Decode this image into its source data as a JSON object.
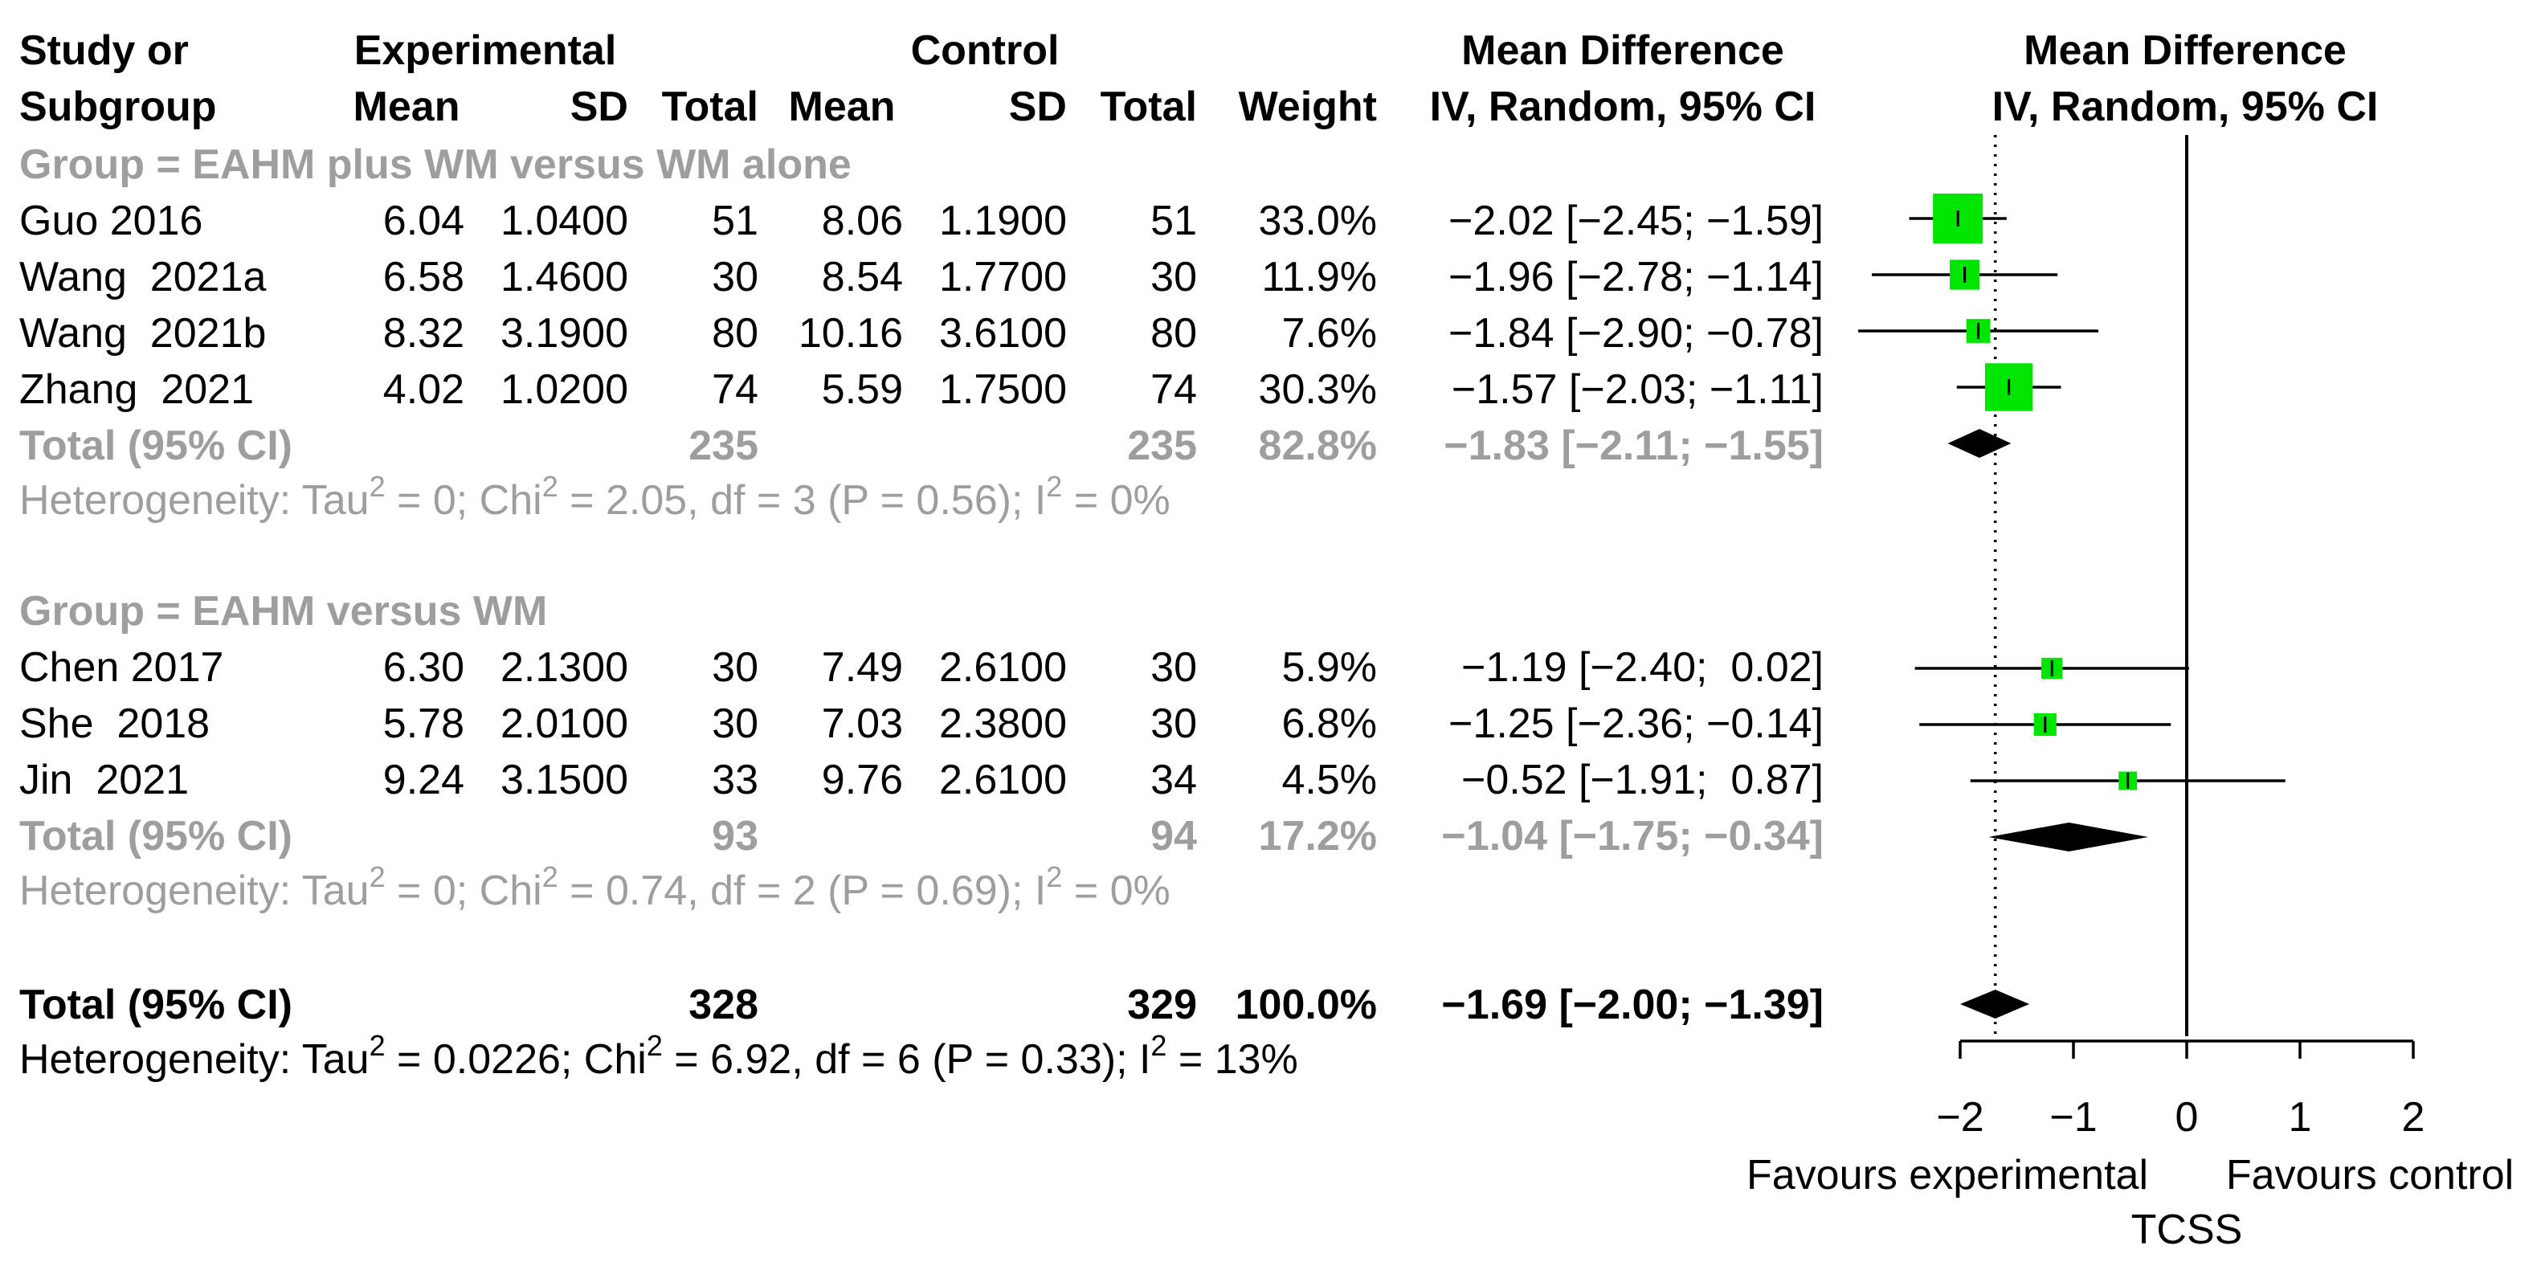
{
  "colors": {
    "text": "#000000",
    "muted": "#9e9e9e",
    "box": "#00e600",
    "diamond": "#000000"
  },
  "headers": {
    "study_line1": "Study or",
    "study_line2": "Subgroup",
    "experimental": "Experimental",
    "control": "Control",
    "mean": "Mean",
    "sd": "SD",
    "total": "Total",
    "weight": "Weight",
    "md_line1": "Mean Difference",
    "md_line2": "IV, Random, 95% CI",
    "plot_line1": "Mean Difference",
    "plot_line2": "IV, Random, 95% CI"
  },
  "chart_data": {
    "type": "forest",
    "measure": "Mean Difference",
    "method": "IV, Random, 95% CI",
    "outcome": "TCSS",
    "xlabel_left": "Favours experimental",
    "xlabel_right": "Favours control",
    "xlabel": "TCSS",
    "xlim": [
      -2,
      2
    ],
    "ticks": [
      -2,
      -1,
      0,
      1,
      2
    ],
    "tick_labels": [
      "−2",
      "−1",
      "0",
      "1",
      "2"
    ],
    "pooled_line": -1.69,
    "null_line": 0,
    "groups": [
      {
        "label": "Group = EAHM plus WM versus WM alone",
        "studies": [
          {
            "name": "Guo 2016",
            "exp_mean": "6.04",
            "exp_sd": "1.0400",
            "exp_total": "51",
            "ctrl_mean": "8.06",
            "ctrl_sd": "1.1900",
            "ctrl_total": "51",
            "weight": "33.0%",
            "md_text": "−2.02 [−2.45; −1.59]",
            "md": -2.02,
            "lo": -2.45,
            "hi": -1.59,
            "w": 33.0
          },
          {
            "name": "Wang  2021a",
            "exp_mean": "6.58",
            "exp_sd": "1.4600",
            "exp_total": "30",
            "ctrl_mean": "8.54",
            "ctrl_sd": "1.7700",
            "ctrl_total": "30",
            "weight": "11.9%",
            "md_text": "−1.96 [−2.78; −1.14]",
            "md": -1.96,
            "lo": -2.78,
            "hi": -1.14,
            "w": 11.9
          },
          {
            "name": "Wang  2021b",
            "exp_mean": "8.32",
            "exp_sd": "3.1900",
            "exp_total": "80",
            "ctrl_mean": "10.16",
            "ctrl_sd": "3.6100",
            "ctrl_total": "80",
            "weight": "7.6%",
            "md_text": "−1.84 [−2.90; −0.78]",
            "md": -1.84,
            "lo": -2.9,
            "hi": -0.78,
            "w": 7.6
          },
          {
            "name": "Zhang  2021",
            "exp_mean": "4.02",
            "exp_sd": "1.0200",
            "exp_total": "74",
            "ctrl_mean": "5.59",
            "ctrl_sd": "1.7500",
            "ctrl_total": "74",
            "weight": "30.3%",
            "md_text": "−1.57 [−2.03; −1.11]",
            "md": -1.57,
            "lo": -2.03,
            "hi": -1.11,
            "w": 30.3
          }
        ],
        "total": {
          "label": "Total (95% CI)",
          "exp_total": "235",
          "ctrl_total": "235",
          "weight": "82.8%",
          "md_text": "−1.83 [−2.11; −1.55]",
          "md": -1.83,
          "lo": -2.11,
          "hi": -1.55
        },
        "heterogeneity": {
          "prefix": "Heterogeneity: Tau",
          "tau2": " = 0; Chi",
          "chi2": " = 2.05, df = 3 (P = 0.56); I",
          "i2": " = 0%"
        }
      },
      {
        "label": "Group = EAHM versus WM",
        "studies": [
          {
            "name": "Chen 2017",
            "exp_mean": "6.30",
            "exp_sd": "2.1300",
            "exp_total": "30",
            "ctrl_mean": "7.49",
            "ctrl_sd": "2.6100",
            "ctrl_total": "30",
            "weight": "5.9%",
            "md_text": "−1.19 [−2.40;  0.02]",
            "md": -1.19,
            "lo": -2.4,
            "hi": 0.02,
            "w": 5.9
          },
          {
            "name": "She  2018",
            "exp_mean": "5.78",
            "exp_sd": "2.0100",
            "exp_total": "30",
            "ctrl_mean": "7.03",
            "ctrl_sd": "2.3800",
            "ctrl_total": "30",
            "weight": "6.8%",
            "md_text": "−1.25 [−2.36; −0.14]",
            "md": -1.25,
            "lo": -2.36,
            "hi": -0.14,
            "w": 6.8
          },
          {
            "name": "Jin  2021",
            "exp_mean": "9.24",
            "exp_sd": "3.1500",
            "exp_total": "33",
            "ctrl_mean": "9.76",
            "ctrl_sd": "2.6100",
            "ctrl_total": "34",
            "weight": "4.5%",
            "md_text": "−0.52 [−1.91;  0.87]",
            "md": -0.52,
            "lo": -1.91,
            "hi": 0.87,
            "w": 4.5
          }
        ],
        "total": {
          "label": "Total (95% CI)",
          "exp_total": "93",
          "ctrl_total": "94",
          "weight": "17.2%",
          "md_text": "−1.04 [−1.75; −0.34]",
          "md": -1.04,
          "lo": -1.75,
          "hi": -0.34
        },
        "heterogeneity": {
          "prefix": "Heterogeneity: Tau",
          "tau2": " = 0; Chi",
          "chi2": " = 0.74, df = 2 (P = 0.69); I",
          "i2": " = 0%"
        }
      }
    ],
    "overall": {
      "label": "Total (95% CI)",
      "exp_total": "328",
      "ctrl_total": "329",
      "weight": "100.0%",
      "md_text": "−1.69 [−2.00; −1.39]",
      "md": -1.69,
      "lo": -2.0,
      "hi": -1.39,
      "heterogeneity": {
        "prefix": "Heterogeneity: Tau",
        "tau2": " = 0.0226; Chi",
        "chi2": " = 6.92, df = 6 (P = 0.33); I",
        "i2": " = 13%"
      }
    }
  }
}
